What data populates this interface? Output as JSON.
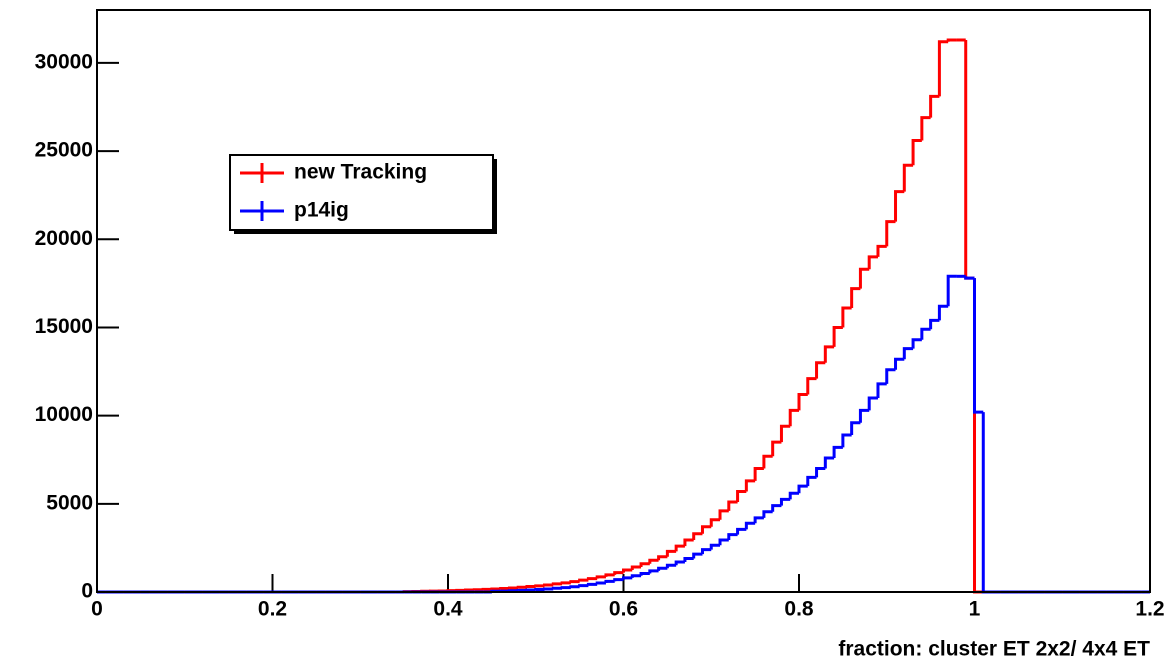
{
  "chart_data": {
    "type": "histogram",
    "xlabel": "fraction: cluster ET 2x2/ 4x4 ET",
    "bins": [
      0,
      0.01,
      0.02,
      0.03,
      0.04,
      0.05,
      0.06,
      0.07,
      0.08,
      0.09,
      0.1,
      0.11,
      0.12,
      0.13,
      0.14,
      0.15,
      0.16,
      0.17,
      0.18,
      0.19,
      0.2,
      0.21,
      0.22,
      0.23,
      0.24,
      0.25,
      0.26,
      0.27,
      0.28,
      0.29,
      0.3,
      0.31,
      0.32,
      0.33,
      0.34,
      0.35,
      0.36,
      0.37,
      0.38,
      0.39,
      0.4,
      0.41,
      0.42,
      0.43,
      0.44,
      0.45,
      0.46,
      0.47,
      0.48,
      0.49,
      0.5,
      0.51,
      0.52,
      0.53,
      0.54,
      0.55,
      0.56,
      0.57,
      0.58,
      0.59,
      0.6,
      0.61,
      0.62,
      0.63,
      0.64,
      0.65,
      0.66,
      0.67,
      0.68,
      0.69,
      0.7,
      0.71,
      0.72,
      0.73,
      0.74,
      0.75,
      0.76,
      0.77,
      0.78,
      0.79,
      0.8,
      0.81,
      0.82,
      0.83,
      0.84,
      0.85,
      0.86,
      0.87,
      0.88,
      0.89,
      0.9,
      0.91,
      0.92,
      0.93,
      0.94,
      0.95,
      0.96,
      0.97,
      0.98,
      0.99,
      1,
      1.01,
      1.02,
      1.03,
      1.04,
      1.05,
      1.06,
      1.07,
      1.08,
      1.09,
      1.1,
      1.11,
      1.12,
      1.13,
      1.14,
      1.15,
      1.16,
      1.17,
      1.18,
      1.19,
      1.2
    ],
    "series": [
      {
        "name": "new Tracking",
        "color": "#ff0000",
        "values": [
          0,
          0,
          0,
          0,
          0,
          0,
          0,
          0,
          0,
          0,
          0,
          0,
          0,
          0,
          0,
          0,
          0,
          0,
          0,
          0,
          0,
          0,
          0,
          0,
          0,
          0,
          0,
          0,
          0,
          0,
          0,
          0,
          0,
          0,
          0,
          20,
          30,
          40,
          50,
          60,
          80,
          90,
          110,
          130,
          150,
          170,
          200,
          230,
          270,
          310,
          350,
          400,
          460,
          520,
          590,
          670,
          760,
          860,
          970,
          1100,
          1250,
          1420,
          1600,
          1800,
          2000,
          2300,
          2600,
          2950,
          3300,
          3700,
          4100,
          4600,
          5100,
          5700,
          6300,
          7000,
          7700,
          8500,
          9400,
          10300,
          11200,
          12100,
          13000,
          13900,
          15000,
          16100,
          17200,
          18300,
          19000,
          19600,
          21000,
          22700,
          24200,
          25600,
          26900,
          28100,
          31200,
          31300,
          31300,
          17800,
          0,
          0,
          0,
          0,
          0,
          0,
          0,
          0,
          0,
          0,
          0,
          0,
          0,
          0,
          0,
          0,
          0,
          0,
          0,
          0
        ]
      },
      {
        "name": "p14ig",
        "color": "#0000ff",
        "values": [
          0,
          0,
          0,
          0,
          0,
          0,
          0,
          0,
          0,
          0,
          0,
          0,
          0,
          0,
          0,
          0,
          0,
          0,
          0,
          0,
          0,
          0,
          0,
          0,
          0,
          0,
          0,
          0,
          0,
          0,
          0,
          0,
          0,
          0,
          0,
          0,
          0,
          0,
          0,
          0,
          0,
          0,
          0,
          0,
          0,
          40,
          50,
          70,
          90,
          110,
          140,
          170,
          210,
          250,
          300,
          360,
          430,
          510,
          600,
          700,
          800,
          920,
          1050,
          1200,
          1350,
          1520,
          1700,
          1900,
          2150,
          2400,
          2650,
          2950,
          3250,
          3550,
          3900,
          4200,
          4550,
          4900,
          5250,
          5600,
          6000,
          6500,
          7000,
          7600,
          8200,
          8900,
          9600,
          10300,
          11000,
          11800,
          12600,
          13200,
          13800,
          14300,
          14900,
          15400,
          16200,
          17900,
          17900,
          17800,
          10200,
          0,
          0,
          0,
          0,
          0,
          0,
          0,
          0,
          0,
          0,
          0,
          0,
          0,
          0,
          0,
          0,
          0,
          0,
          0,
          0
        ]
      }
    ],
    "xlim": [
      0,
      1.2
    ],
    "xticks": [
      0,
      0.2,
      0.4,
      0.6,
      0.8,
      1,
      1.2
    ],
    "ylim": [
      0,
      33000
    ],
    "yticks": [
      0,
      5000,
      10000,
      15000,
      20000,
      25000,
      30000
    ],
    "legend": "upper-left",
    "grid": false
  }
}
